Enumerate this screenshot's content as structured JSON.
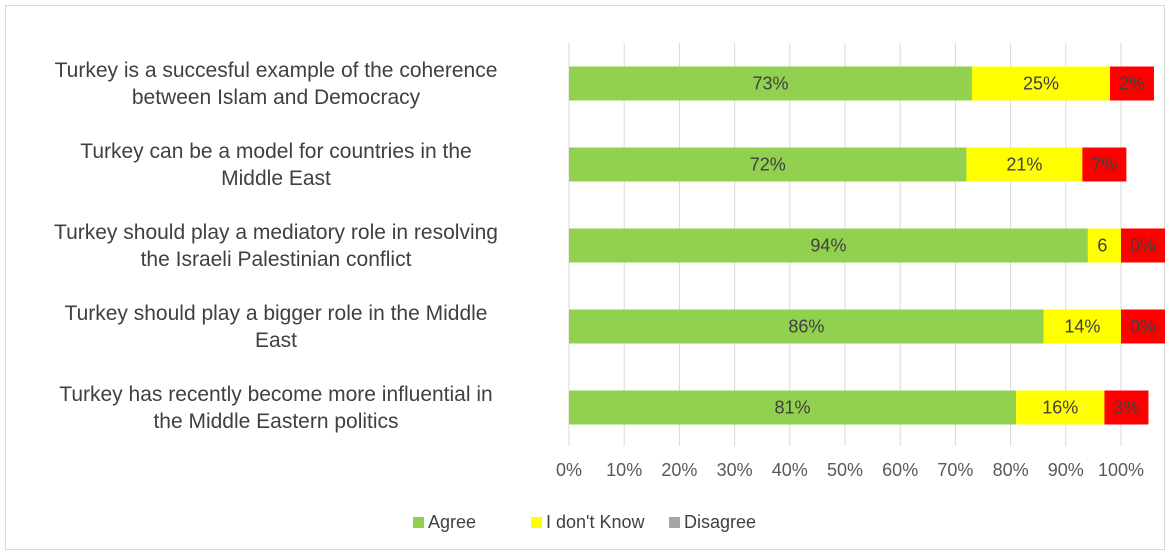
{
  "chart_data": {
    "type": "bar",
    "orientation": "horizontal",
    "stacked": true,
    "categories": [
      [
        "Turkey is a succesful example of the coherence",
        "between Islam and Democracy"
      ],
      [
        "Turkey can be a model for countries in the",
        "Middle East"
      ],
      [
        "Turkey should play a mediatory role in resolving",
        "the Israeli Palestinian conflict"
      ],
      [
        "Turkey should play a bigger role in the Middle",
        "East"
      ],
      [
        "Turkey has recently become more influential in",
        "the Middle Eastern politics"
      ]
    ],
    "series": [
      {
        "name": "Agree",
        "values": [
          73,
          72,
          94,
          86,
          81
        ],
        "labels": [
          "73%",
          "72%",
          "94%",
          "86%",
          "81%"
        ]
      },
      {
        "name": "I don't Know",
        "values": [
          25,
          21,
          6,
          14,
          16
        ],
        "labels": [
          "25%",
          "21%",
          "6",
          "14%",
          "16%"
        ]
      },
      {
        "name": "Disagree",
        "values": [
          2,
          7,
          0,
          0,
          3
        ],
        "labels": [
          "2%",
          "7%",
          "0%",
          "0%",
          "3%"
        ]
      }
    ],
    "xticks": [
      "0%",
      "10%",
      "20%",
      "30%",
      "40%",
      "50%",
      "60%",
      "70%",
      "80%",
      "90%",
      "100%"
    ],
    "xlim": [
      0,
      100
    ],
    "grid": "vertical",
    "legend_position": "bottom",
    "colors": {
      "Agree": "#92d050",
      "I don't Know": "#ffff00",
      "Disagree": "#ff0000",
      "legend_disagree": "#a5a5a5",
      "grid": "#d9d9d9"
    }
  }
}
